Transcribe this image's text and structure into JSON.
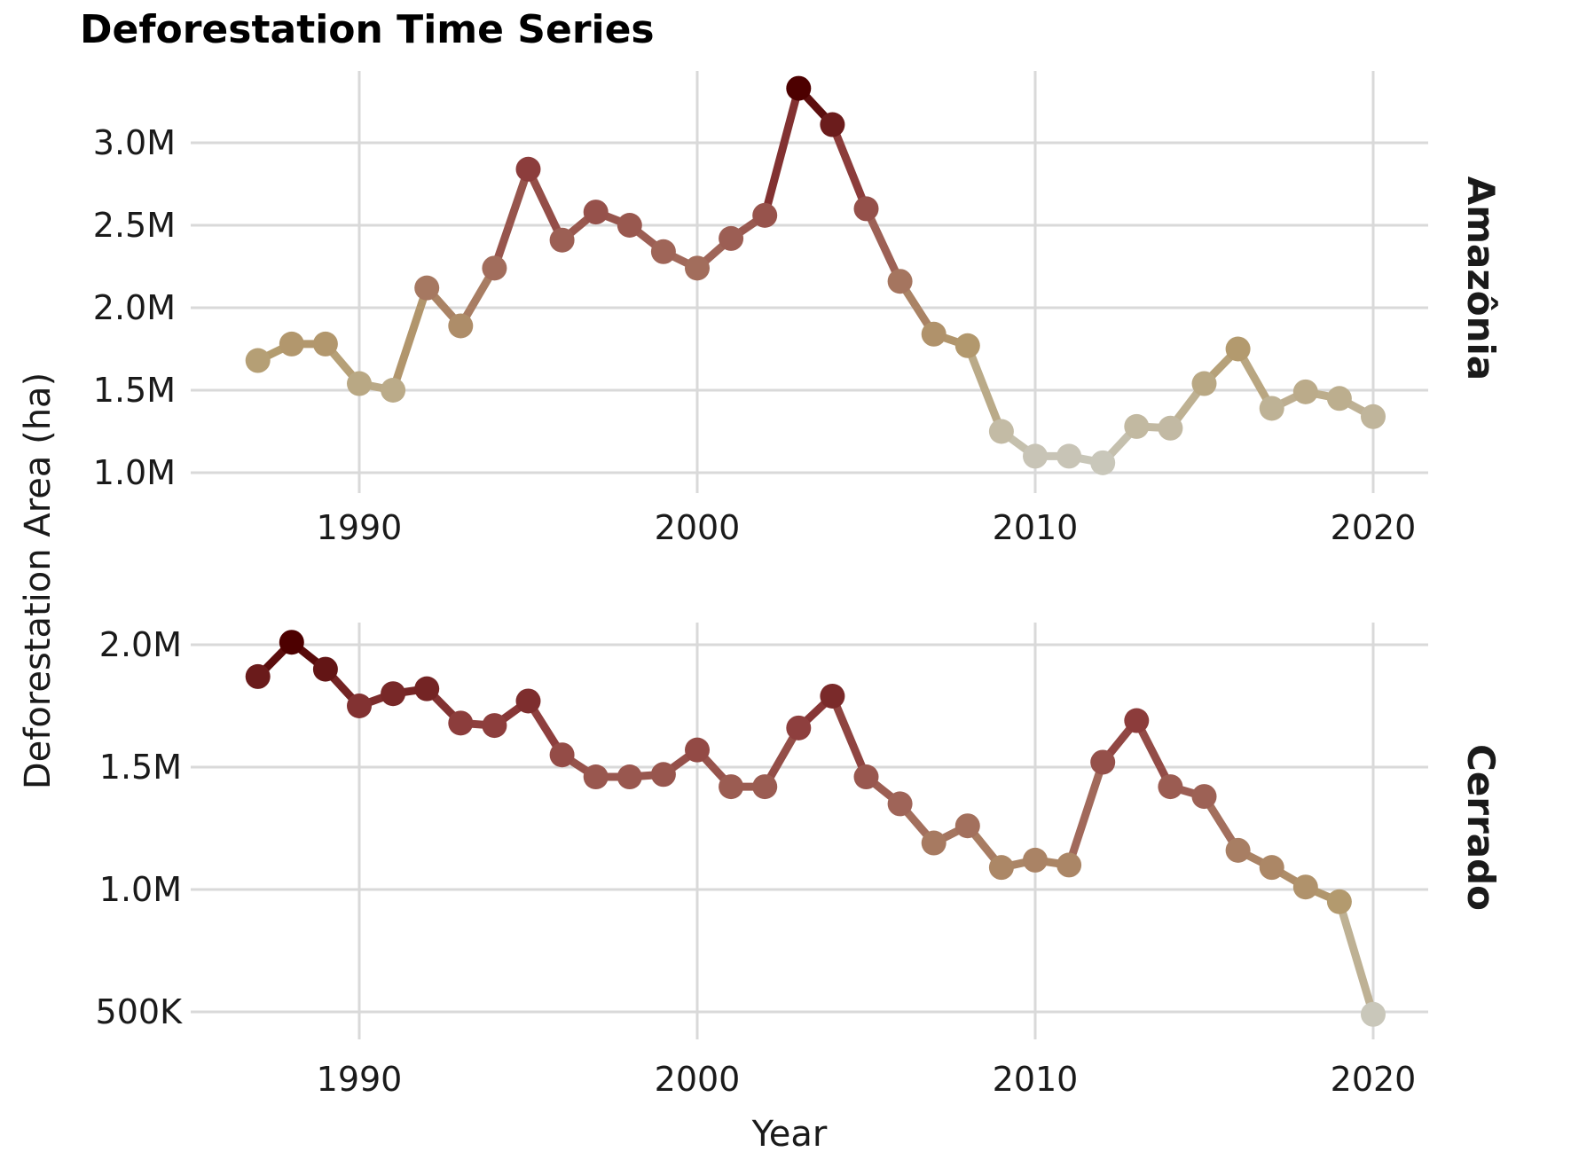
{
  "chart_data": {
    "type": "line",
    "title": "Deforestation Time Series",
    "xlabel": "Year",
    "ylabel": "Deforestation Area (ha)",
    "xlim": [
      1984.5,
      2021.7
    ],
    "x_ticks": [
      1990,
      2000,
      2010,
      2020
    ],
    "x_tick_labels": [
      "1990",
      "2000",
      "2010",
      "2020"
    ],
    "grid": true,
    "legend": "none",
    "color_scale": {
      "low": "#c9c7ba",
      "mid_low": "#b39b6e",
      "mid": "#a0675a",
      "mid_high": "#8b3a3a",
      "high": "#4d0000"
    },
    "panels": [
      {
        "name": "Amazônia",
        "ylim": [
          1.0,
          3.32
        ],
        "y_ticks": [
          1.0,
          1.5,
          2.0,
          2.5,
          3.0
        ],
        "y_tick_labels": [
          "1.0M",
          "1.5M",
          "2.0M",
          "2.5M",
          "3.0M"
        ],
        "x": [
          1987,
          1988,
          1989,
          1990,
          1991,
          1992,
          1993,
          1994,
          1995,
          1996,
          1997,
          1998,
          1999,
          2000,
          2001,
          2002,
          2003,
          2004,
          2005,
          2006,
          2007,
          2008,
          2009,
          2010,
          2011,
          2012,
          2013,
          2014,
          2015,
          2016,
          2017,
          2018,
          2019,
          2020
        ],
        "values": [
          1.68,
          1.78,
          1.78,
          1.54,
          1.5,
          2.12,
          1.89,
          2.24,
          2.84,
          2.41,
          2.58,
          2.5,
          2.34,
          2.24,
          2.42,
          2.56,
          3.33,
          3.11,
          2.6,
          2.16,
          1.84,
          1.77,
          1.25,
          1.1,
          1.1,
          1.06,
          1.28,
          1.27,
          1.54,
          1.75,
          1.39,
          1.49,
          1.45,
          1.34
        ]
      },
      {
        "name": "Cerrado",
        "ylim": [
          0.5,
          2.1
        ],
        "y_ticks": [
          0.5,
          1.0,
          1.5,
          2.0
        ],
        "y_tick_labels": [
          "500K",
          "1.0M",
          "1.5M",
          "2.0M"
        ],
        "x": [
          1987,
          1988,
          1989,
          1990,
          1991,
          1992,
          1993,
          1994,
          1995,
          1996,
          1997,
          1998,
          1999,
          2000,
          2001,
          2002,
          2003,
          2004,
          2005,
          2006,
          2007,
          2008,
          2009,
          2010,
          2011,
          2012,
          2013,
          2014,
          2015,
          2016,
          2017,
          2018,
          2019,
          2020
        ],
        "values": [
          1.87,
          2.01,
          1.9,
          1.75,
          1.8,
          1.82,
          1.68,
          1.67,
          1.77,
          1.55,
          1.46,
          1.46,
          1.47,
          1.57,
          1.42,
          1.42,
          1.66,
          1.79,
          1.46,
          1.35,
          1.19,
          1.26,
          1.09,
          1.12,
          1.1,
          1.52,
          1.69,
          1.42,
          1.38,
          1.16,
          1.09,
          1.01,
          0.95,
          0.49
        ]
      }
    ]
  }
}
